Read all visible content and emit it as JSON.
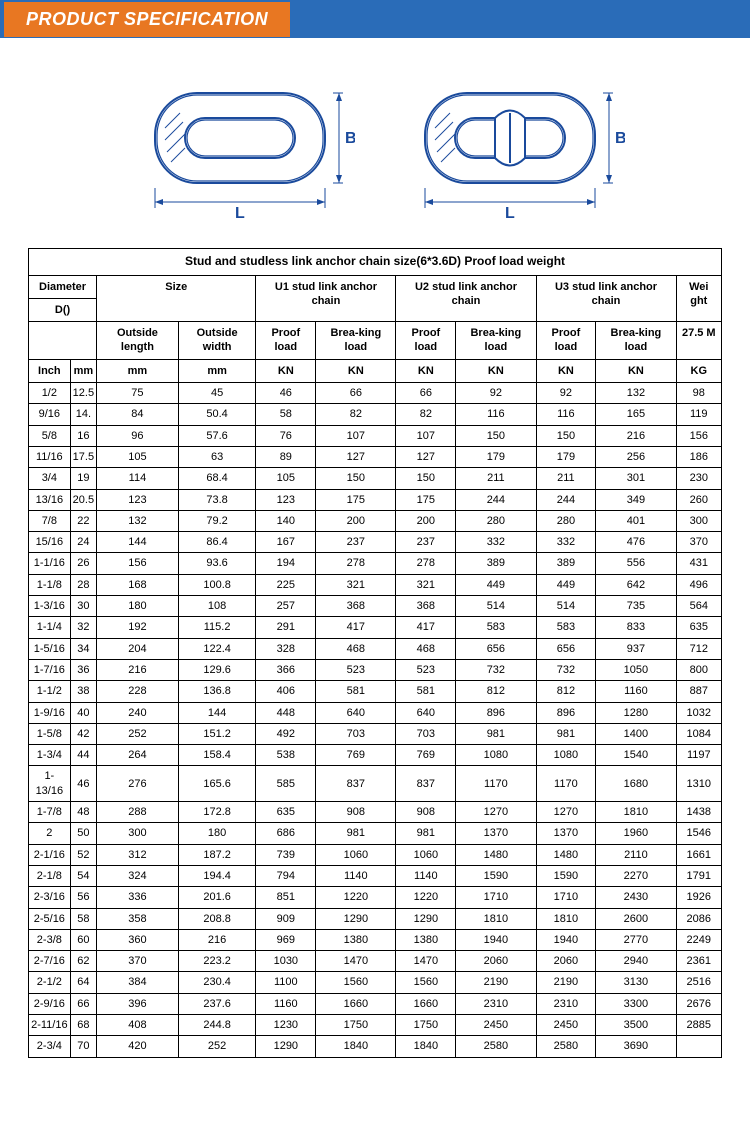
{
  "header": {
    "title": "PRODUCT  SPECIFICATION"
  },
  "colors": {
    "header_bar": "#2a6cb8",
    "header_tab": "#e87722",
    "diagram_stroke": "#1a4a9c",
    "table_border": "#000000",
    "page_bg": "#ffffff"
  },
  "diagram": {
    "labels": {
      "length": "L",
      "width": "B"
    },
    "dimension_color": "#1a4a9c"
  },
  "table": {
    "title": "Stud and studless link anchor chain size(6*3.6D) Proof load weight",
    "group_headers": {
      "diameter": "Diameter",
      "diameter_sub": "D()",
      "size": "Size",
      "u1": "U1 stud link anchor chain",
      "u2": "U2 stud link anchor chain",
      "u3": "U3 stud link anchor chain",
      "weight": "Wei ght"
    },
    "sub_headers": {
      "outside_length": "Outside length",
      "outside_width": "Outside width",
      "proof_load": "Proof load",
      "breaking_load": "Brea-king load",
      "weight_value": "27.5 M"
    },
    "unit_headers": [
      "Inch",
      "mm",
      "mm",
      "mm",
      "KN",
      "KN",
      "KN",
      "KN",
      "KN",
      "KN",
      "KG"
    ],
    "rows": [
      [
        "1/2",
        "12.5",
        "75",
        "45",
        "46",
        "66",
        "66",
        "92",
        "92",
        "132",
        "98"
      ],
      [
        "9/16",
        "14.",
        "84",
        "50.4",
        "58",
        "82",
        "82",
        "116",
        "116",
        "165",
        "119"
      ],
      [
        "5/8",
        "16",
        "96",
        "57.6",
        "76",
        "107",
        "107",
        "150",
        "150",
        "216",
        "156"
      ],
      [
        "11/16",
        "17.5",
        "105",
        "63",
        "89",
        "127",
        "127",
        "179",
        "179",
        "256",
        "186"
      ],
      [
        "3/4",
        "19",
        "114",
        "68.4",
        "105",
        "150",
        "150",
        "211",
        "211",
        "301",
        "230"
      ],
      [
        "13/16",
        "20.5",
        "123",
        "73.8",
        "123",
        "175",
        "175",
        "244",
        "244",
        "349",
        "260"
      ],
      [
        "7/8",
        "22",
        "132",
        "79.2",
        "140",
        "200",
        "200",
        "280",
        "280",
        "401",
        "300"
      ],
      [
        "15/16",
        "24",
        "144",
        "86.4",
        "167",
        "237",
        "237",
        "332",
        "332",
        "476",
        "370"
      ],
      [
        "1-1/16",
        "26",
        "156",
        "93.6",
        "194",
        "278",
        "278",
        "389",
        "389",
        "556",
        "431"
      ],
      [
        "1-1/8",
        "28",
        "168",
        "100.8",
        "225",
        "321",
        "321",
        "449",
        "449",
        "642",
        "496"
      ],
      [
        "1-3/16",
        "30",
        "180",
        "108",
        "257",
        "368",
        "368",
        "514",
        "514",
        "735",
        "564"
      ],
      [
        "1-1/4",
        "32",
        "192",
        "115.2",
        "291",
        "417",
        "417",
        "583",
        "583",
        "833",
        "635"
      ],
      [
        "1-5/16",
        "34",
        "204",
        "122.4",
        "328",
        "468",
        "468",
        "656",
        "656",
        "937",
        "712"
      ],
      [
        "1-7/16",
        "36",
        "216",
        "129.6",
        "366",
        "523",
        "523",
        "732",
        "732",
        "1050",
        "800"
      ],
      [
        "1-1/2",
        "38",
        "228",
        "136.8",
        "406",
        "581",
        "581",
        "812",
        "812",
        "1160",
        "887"
      ],
      [
        "1-9/16",
        "40",
        "240",
        "144",
        "448",
        "640",
        "640",
        "896",
        "896",
        "1280",
        "1032"
      ],
      [
        "1-5/8",
        "42",
        "252",
        "151.2",
        "492",
        "703",
        "703",
        "981",
        "981",
        "1400",
        "1084"
      ],
      [
        "1-3/4",
        "44",
        "264",
        "158.4",
        "538",
        "769",
        "769",
        "1080",
        "1080",
        "1540",
        "1197"
      ],
      [
        "1-13/16",
        "46",
        "276",
        "165.6",
        "585",
        "837",
        "837",
        "1170",
        "1170",
        "1680",
        "1310"
      ],
      [
        "1-7/8",
        "48",
        "288",
        "172.8",
        "635",
        "908",
        "908",
        "1270",
        "1270",
        "1810",
        "1438"
      ],
      [
        "2",
        "50",
        "300",
        "180",
        "686",
        "981",
        "981",
        "1370",
        "1370",
        "1960",
        "1546"
      ],
      [
        "2-1/16",
        "52",
        "312",
        "187.2",
        "739",
        "1060",
        "1060",
        "1480",
        "1480",
        "2110",
        "1661"
      ],
      [
        "2-1/8",
        "54",
        "324",
        "194.4",
        "794",
        "1140",
        "1140",
        "1590",
        "1590",
        "2270",
        "1791"
      ],
      [
        "2-3/16",
        "56",
        "336",
        "201.6",
        "851",
        "1220",
        "1220",
        "1710",
        "1710",
        "2430",
        "1926"
      ],
      [
        "2-5/16",
        "58",
        "358",
        "208.8",
        "909",
        "1290",
        "1290",
        "1810",
        "1810",
        "2600",
        "2086"
      ],
      [
        "2-3/8",
        "60",
        "360",
        "216",
        "969",
        "1380",
        "1380",
        "1940",
        "1940",
        "2770",
        "2249"
      ],
      [
        "2-7/16",
        "62",
        "370",
        "223.2",
        "1030",
        "1470",
        "1470",
        "2060",
        "2060",
        "2940",
        "2361"
      ],
      [
        "2-1/2",
        "64",
        "384",
        "230.4",
        "1100",
        "1560",
        "1560",
        "2190",
        "2190",
        "3130",
        "2516"
      ],
      [
        "2-9/16",
        "66",
        "396",
        "237.6",
        "1160",
        "1660",
        "1660",
        "2310",
        "2310",
        "3300",
        "2676"
      ],
      [
        "2-11/16",
        "68",
        "408",
        "244.8",
        "1230",
        "1750",
        "1750",
        "2450",
        "2450",
        "3500",
        "2885"
      ],
      [
        "2-3/4",
        "70",
        "420",
        "252",
        "1290",
        "1840",
        "1840",
        "2580",
        "2580",
        "3690",
        ""
      ]
    ]
  }
}
